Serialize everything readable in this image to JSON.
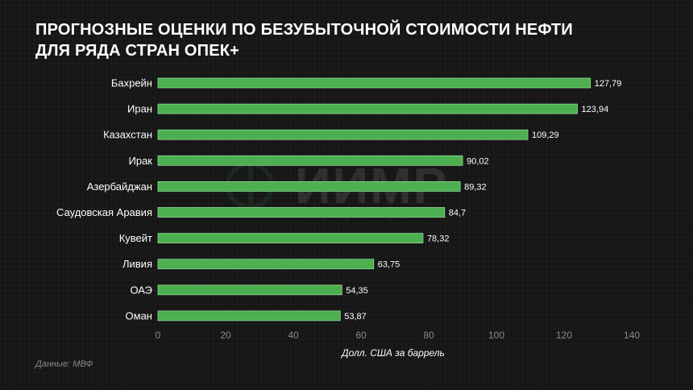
{
  "title_line1": "Прогнозные оценки по безубыточной стоимости нефти",
  "title_line2": "для ряда стран ОПЕК+",
  "source": "Данные: МВФ",
  "watermark": {
    "text": "ИИМР",
    "subtitle": "Институт Изучения Мировых Рынков"
  },
  "colors": {
    "bar": "#4caf50",
    "background": "#161616",
    "text": "#ffffff",
    "axis": "#8a8a8a"
  },
  "chart_data": {
    "type": "bar",
    "orientation": "horizontal",
    "categories": [
      "Бахрейн",
      "Иран",
      "Казахстан",
      "Ирак",
      "Азербайджан",
      "Саудовская Аравия",
      "Кувейт",
      "Ливия",
      "ОАЭ",
      "Оман"
    ],
    "values": [
      127.79,
      123.94,
      109.29,
      90.02,
      89.32,
      84.7,
      78.32,
      63.75,
      54.35,
      53.87
    ],
    "value_labels": [
      "127,79",
      "123,94",
      "109,29",
      "90,02",
      "89,32",
      "84,7",
      "78,32",
      "63,75",
      "54,35",
      "53,87"
    ],
    "xticks": [
      0,
      20,
      40,
      60,
      80,
      100,
      120,
      140
    ],
    "xlim": [
      0,
      140
    ],
    "xlabel": "Долл. США за баррель",
    "ylabel": "",
    "grid": false
  }
}
